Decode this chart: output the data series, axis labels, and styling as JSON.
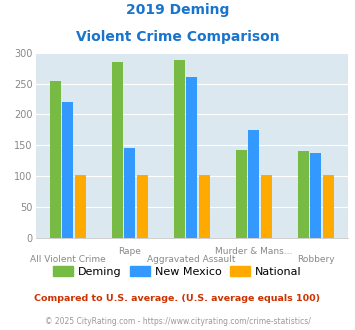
{
  "title_line1": "2019 Deming",
  "title_line2": "Violent Crime Comparison",
  "title_color": "#1874cd",
  "groups": [
    "Deming",
    "New Mexico",
    "National"
  ],
  "values": [
    [
      254,
      220,
      102
    ],
    [
      285,
      145,
      102
    ],
    [
      288,
      260,
      102
    ],
    [
      142,
      174,
      102
    ],
    [
      140,
      137,
      102
    ]
  ],
  "top_labels": [
    "",
    "Rape",
    "",
    "Murder & Mans...",
    ""
  ],
  "bottom_labels": [
    "All Violent Crime",
    "",
    "Aggravated Assault",
    "",
    "Robbery"
  ],
  "bar_colors": [
    "#77bb44",
    "#3399ff",
    "#ffaa00"
  ],
  "plot_bg_color": "#dce8f0",
  "ylim": [
    0,
    300
  ],
  "yticks": [
    0,
    50,
    100,
    150,
    200,
    250,
    300
  ],
  "footnote": "Compared to U.S. average. (U.S. average equals 100)",
  "footnote2": "© 2025 CityRating.com - https://www.cityrating.com/crime-statistics/",
  "footnote_color": "#cc3300",
  "footnote2_color": "#999999"
}
